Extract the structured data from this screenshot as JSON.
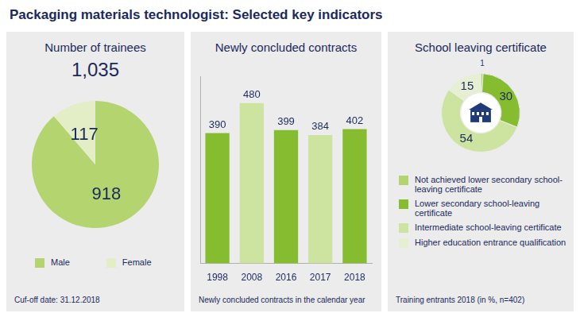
{
  "title": "Packaging materials technologist: Selected key indicators",
  "chart_data": [
    {
      "type": "pie",
      "title": "Number of trainees",
      "total": {
        "value": 1035,
        "label": "1,035"
      },
      "categories": [
        "Male",
        "Female"
      ],
      "values": [
        918,
        117
      ],
      "colors": [
        "#b3d46e",
        "#e3eec6"
      ],
      "data_labels": true,
      "legend": "bottom",
      "note": "Cuf-off date: 31.12.2018"
    },
    {
      "type": "bar",
      "title": "Newly concluded contracts",
      "categories": [
        "1998",
        "2008",
        "2016",
        "2017",
        "2018"
      ],
      "values": [
        390,
        480,
        399,
        384,
        402
      ],
      "colors": [
        "#86bc30",
        "#cde3a0",
        "#86bc30",
        "#cde3a0",
        "#86bc30"
      ],
      "ylim": [
        0,
        560
      ],
      "grid": false,
      "tick_labels": "x",
      "data_labels": true,
      "note": "Newly concluded contracts in the calendar year"
    },
    {
      "type": "doughnut",
      "title": "School leaving certificate",
      "categories": [
        "Not achieved lower secondary school-leaving certificate",
        "Lower secondary school-leaving certificate",
        "Intermediate school-leaving certificate",
        "Higher education entrance qualification"
      ],
      "values": [
        1,
        30,
        54,
        15
      ],
      "colors": [
        "#b3d46e",
        "#86bc30",
        "#cde3a0",
        "#e6efd2"
      ],
      "data_labels": true,
      "legend": "bottom",
      "note": "Training entrants 2018 (in %, n=402)"
    }
  ]
}
